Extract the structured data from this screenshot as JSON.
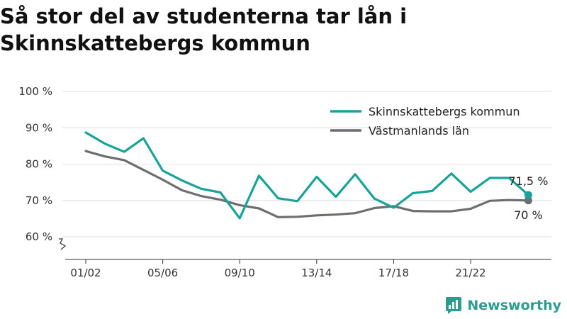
{
  "title": "Så stor del av studenterna tar lån i Skinnskattebergs kommun",
  "brand": {
    "name": "Newsworthy",
    "icon": "newsworthy-logo-icon",
    "color": "#2a9d8f"
  },
  "chart_data": {
    "type": "line",
    "title": "Så stor del av studenterna tar lån i Skinnskattebergs kommun",
    "xlabel": "",
    "ylabel": "",
    "ylim": [
      60,
      100
    ],
    "y_ticks": [
      {
        "value": 60,
        "label": "60 %"
      },
      {
        "value": 70,
        "label": "70 %"
      },
      {
        "value": 80,
        "label": "80 %"
      },
      {
        "value": 90,
        "label": "90 %"
      },
      {
        "value": 100,
        "label": "100 %"
      }
    ],
    "x_ticks": [
      {
        "index": 0,
        "label": "01/02"
      },
      {
        "index": 4,
        "label": "05/06"
      },
      {
        "index": 8,
        "label": "09/10"
      },
      {
        "index": 12,
        "label": "13/14"
      },
      {
        "index": 16,
        "label": "17/18"
      },
      {
        "index": 20,
        "label": "21/22"
      }
    ],
    "grid": true,
    "legend_position": "top-right",
    "series": [
      {
        "name": "Skinnskattebergs kommun",
        "color": "#17a398",
        "end_label": "71,5 %",
        "values": [
          88.7,
          85.6,
          83.4,
          87.1,
          78.2,
          75.5,
          73.2,
          72.2,
          65.1,
          76.8,
          70.6,
          69.8,
          76.5,
          71.0,
          77.2,
          70.5,
          68.0,
          72.0,
          72.6,
          77.4,
          72.4,
          76.2,
          76.2,
          71.5
        ]
      },
      {
        "name": "Västmanlands län",
        "color": "#6d6d72",
        "end_label": "70 %",
        "values": [
          83.6,
          82.1,
          81.1,
          78.4,
          75.7,
          72.8,
          71.2,
          70.2,
          68.7,
          67.8,
          65.4,
          65.5,
          65.9,
          66.1,
          66.5,
          67.9,
          68.4,
          67.1,
          67.0,
          67.0,
          67.7,
          69.9,
          70.1,
          70.0
        ]
      }
    ]
  }
}
